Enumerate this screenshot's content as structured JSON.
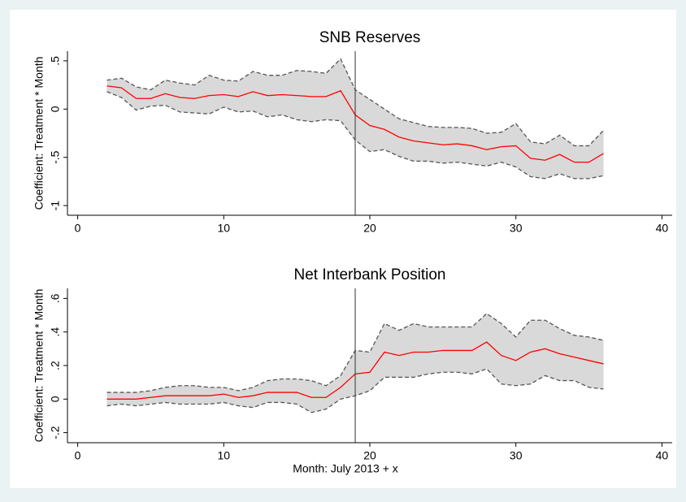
{
  "chart_data": [
    {
      "type": "line",
      "title": "SNB Reserves",
      "ylabel": "Coefficient: Treatment * Month",
      "x": [
        2,
        3,
        4,
        5,
        6,
        7,
        8,
        9,
        10,
        11,
        12,
        13,
        14,
        15,
        16,
        17,
        18,
        19,
        20,
        21,
        22,
        23,
        24,
        25,
        26,
        27,
        28,
        29,
        30,
        31,
        32,
        33,
        34,
        35,
        36
      ],
      "values": [
        0.24,
        0.22,
        0.11,
        0.11,
        0.16,
        0.12,
        0.11,
        0.14,
        0.15,
        0.13,
        0.18,
        0.14,
        0.15,
        0.14,
        0.13,
        0.13,
        0.19,
        -0.06,
        -0.17,
        -0.21,
        -0.29,
        -0.33,
        -0.35,
        -0.37,
        -0.36,
        -0.38,
        -0.42,
        -0.39,
        -0.38,
        -0.51,
        -0.53,
        -0.47,
        -0.55,
        -0.55,
        -0.46
      ],
      "ci_upper": [
        0.3,
        0.32,
        0.23,
        0.2,
        0.3,
        0.27,
        0.25,
        0.35,
        0.3,
        0.29,
        0.39,
        0.35,
        0.35,
        0.4,
        0.39,
        0.37,
        0.52,
        0.2,
        0.1,
        0.0,
        -0.1,
        -0.14,
        -0.18,
        -0.19,
        -0.19,
        -0.2,
        -0.25,
        -0.24,
        -0.15,
        -0.34,
        -0.36,
        -0.27,
        -0.38,
        -0.38,
        -0.22
      ],
      "ci_lower": [
        0.18,
        0.12,
        -0.01,
        0.03,
        0.04,
        -0.03,
        -0.04,
        -0.05,
        0.02,
        -0.03,
        -0.02,
        -0.08,
        -0.06,
        -0.11,
        -0.13,
        -0.11,
        -0.12,
        -0.32,
        -0.44,
        -0.42,
        -0.49,
        -0.54,
        -0.54,
        -0.56,
        -0.55,
        -0.57,
        -0.59,
        -0.55,
        -0.6,
        -0.7,
        -0.72,
        -0.67,
        -0.72,
        -0.72,
        -0.69
      ],
      "color": "#ff0000",
      "band_color": "#d9d9d9",
      "ci_color": "#555555",
      "vline": 19,
      "xlim": [
        -0.7,
        40.7
      ],
      "xticks": [
        0,
        10,
        20,
        30,
        40
      ],
      "ylim": [
        -1.1,
        0.6
      ],
      "yticks": [
        {
          "value": 0.5,
          "label": ".5"
        },
        0,
        {
          "value": -0.5,
          "label": "-.5"
        },
        -1
      ]
    },
    {
      "type": "line",
      "title": "Net Interbank Position",
      "ylabel": "Coefficient: Treatment * Month",
      "xlabel": "Month: July 2013 + x",
      "x": [
        2,
        3,
        4,
        5,
        6,
        7,
        8,
        9,
        10,
        11,
        12,
        13,
        14,
        15,
        16,
        17,
        18,
        19,
        20,
        21,
        22,
        23,
        24,
        25,
        26,
        27,
        28,
        29,
        30,
        31,
        32,
        33,
        34,
        35,
        36
      ],
      "values": [
        0.0,
        0.0,
        0.0,
        0.01,
        0.02,
        0.02,
        0.02,
        0.02,
        0.03,
        0.01,
        0.02,
        0.04,
        0.04,
        0.04,
        0.01,
        0.01,
        0.07,
        0.15,
        0.16,
        0.28,
        0.26,
        0.28,
        0.28,
        0.29,
        0.29,
        0.29,
        0.34,
        0.26,
        0.23,
        0.28,
        0.3,
        0.27,
        0.25,
        0.23,
        0.21
      ],
      "ci_upper": [
        0.04,
        0.04,
        0.04,
        0.05,
        0.07,
        0.08,
        0.08,
        0.07,
        0.07,
        0.05,
        0.07,
        0.11,
        0.12,
        0.12,
        0.11,
        0.08,
        0.14,
        0.29,
        0.28,
        0.45,
        0.41,
        0.45,
        0.43,
        0.43,
        0.43,
        0.43,
        0.51,
        0.45,
        0.37,
        0.47,
        0.47,
        0.42,
        0.38,
        0.37,
        0.35
      ],
      "ci_lower": [
        -0.04,
        -0.03,
        -0.04,
        -0.03,
        -0.02,
        -0.03,
        -0.03,
        -0.03,
        -0.02,
        -0.04,
        -0.05,
        -0.02,
        -0.02,
        -0.03,
        -0.08,
        -0.06,
        0.0,
        0.02,
        0.05,
        0.13,
        0.13,
        0.13,
        0.15,
        0.16,
        0.16,
        0.15,
        0.18,
        0.09,
        0.08,
        0.09,
        0.14,
        0.11,
        0.11,
        0.07,
        0.06
      ],
      "color": "#ff0000",
      "band_color": "#d9d9d9",
      "ci_color": "#555555",
      "vline": 19,
      "xlim": [
        -0.7,
        40.7
      ],
      "xticks": [
        0,
        10,
        20,
        30,
        40
      ],
      "ylim": [
        -0.26,
        0.66
      ],
      "yticks": [
        {
          "value": 0.6,
          "label": ".6"
        },
        {
          "value": 0.4,
          "label": ".4"
        },
        {
          "value": 0.2,
          "label": ".2"
        },
        0,
        {
          "value": -0.2,
          "label": "-.2"
        }
      ]
    }
  ]
}
